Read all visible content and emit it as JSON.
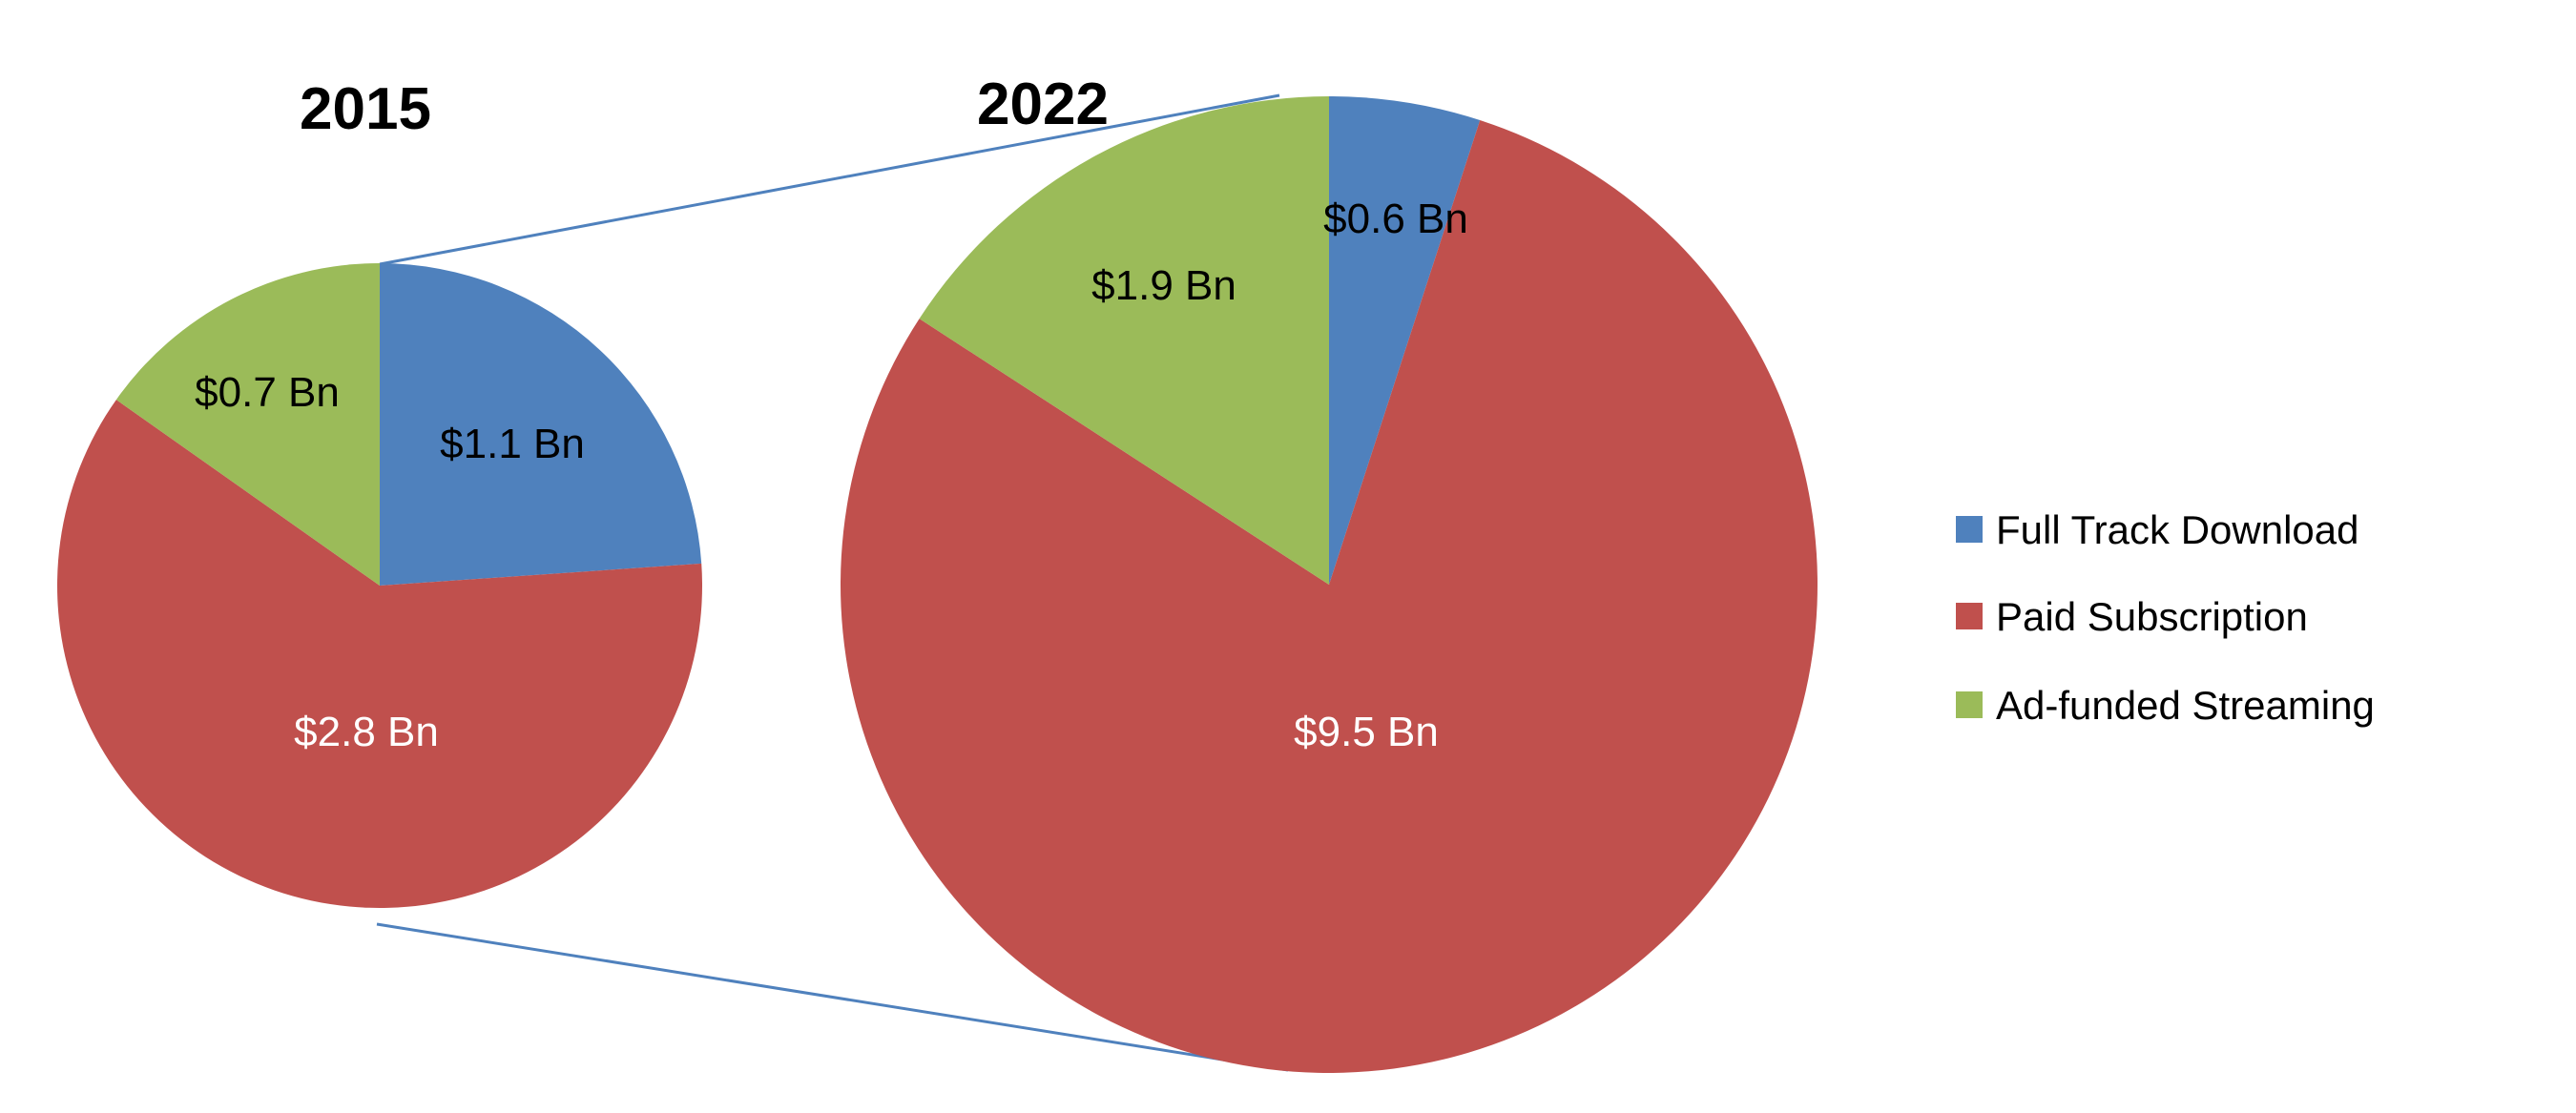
{
  "chart_data": [
    {
      "type": "pie",
      "title": "2015",
      "categories": [
        "Full Track Download",
        "Paid Subscription",
        "Ad-funded Streaming"
      ],
      "values": [
        1.1,
        2.8,
        0.7
      ],
      "labels": [
        "$1.1 Bn",
        "$2.8 Bn",
        "$0.7 Bn"
      ],
      "unit": "USD billions"
    },
    {
      "type": "pie",
      "title": "2022",
      "categories": [
        "Full Track Download",
        "Paid Subscription",
        "Ad-funded Streaming"
      ],
      "values": [
        0.6,
        9.5,
        1.9
      ],
      "labels": [
        "$0.6 Bn",
        "$9.5 Bn",
        "$1.9 Bn"
      ],
      "unit": "USD billions"
    }
  ],
  "legend": {
    "placement": "right",
    "items": [
      "Full Track Download",
      "Paid Subscription",
      "Ad-funded Streaming"
    ]
  },
  "colors": [
    "#4F81BD",
    "#C0504D",
    "#9BBB59"
  ],
  "label_colors": [
    "#000000",
    "#FFFFFF",
    "#000000"
  ]
}
